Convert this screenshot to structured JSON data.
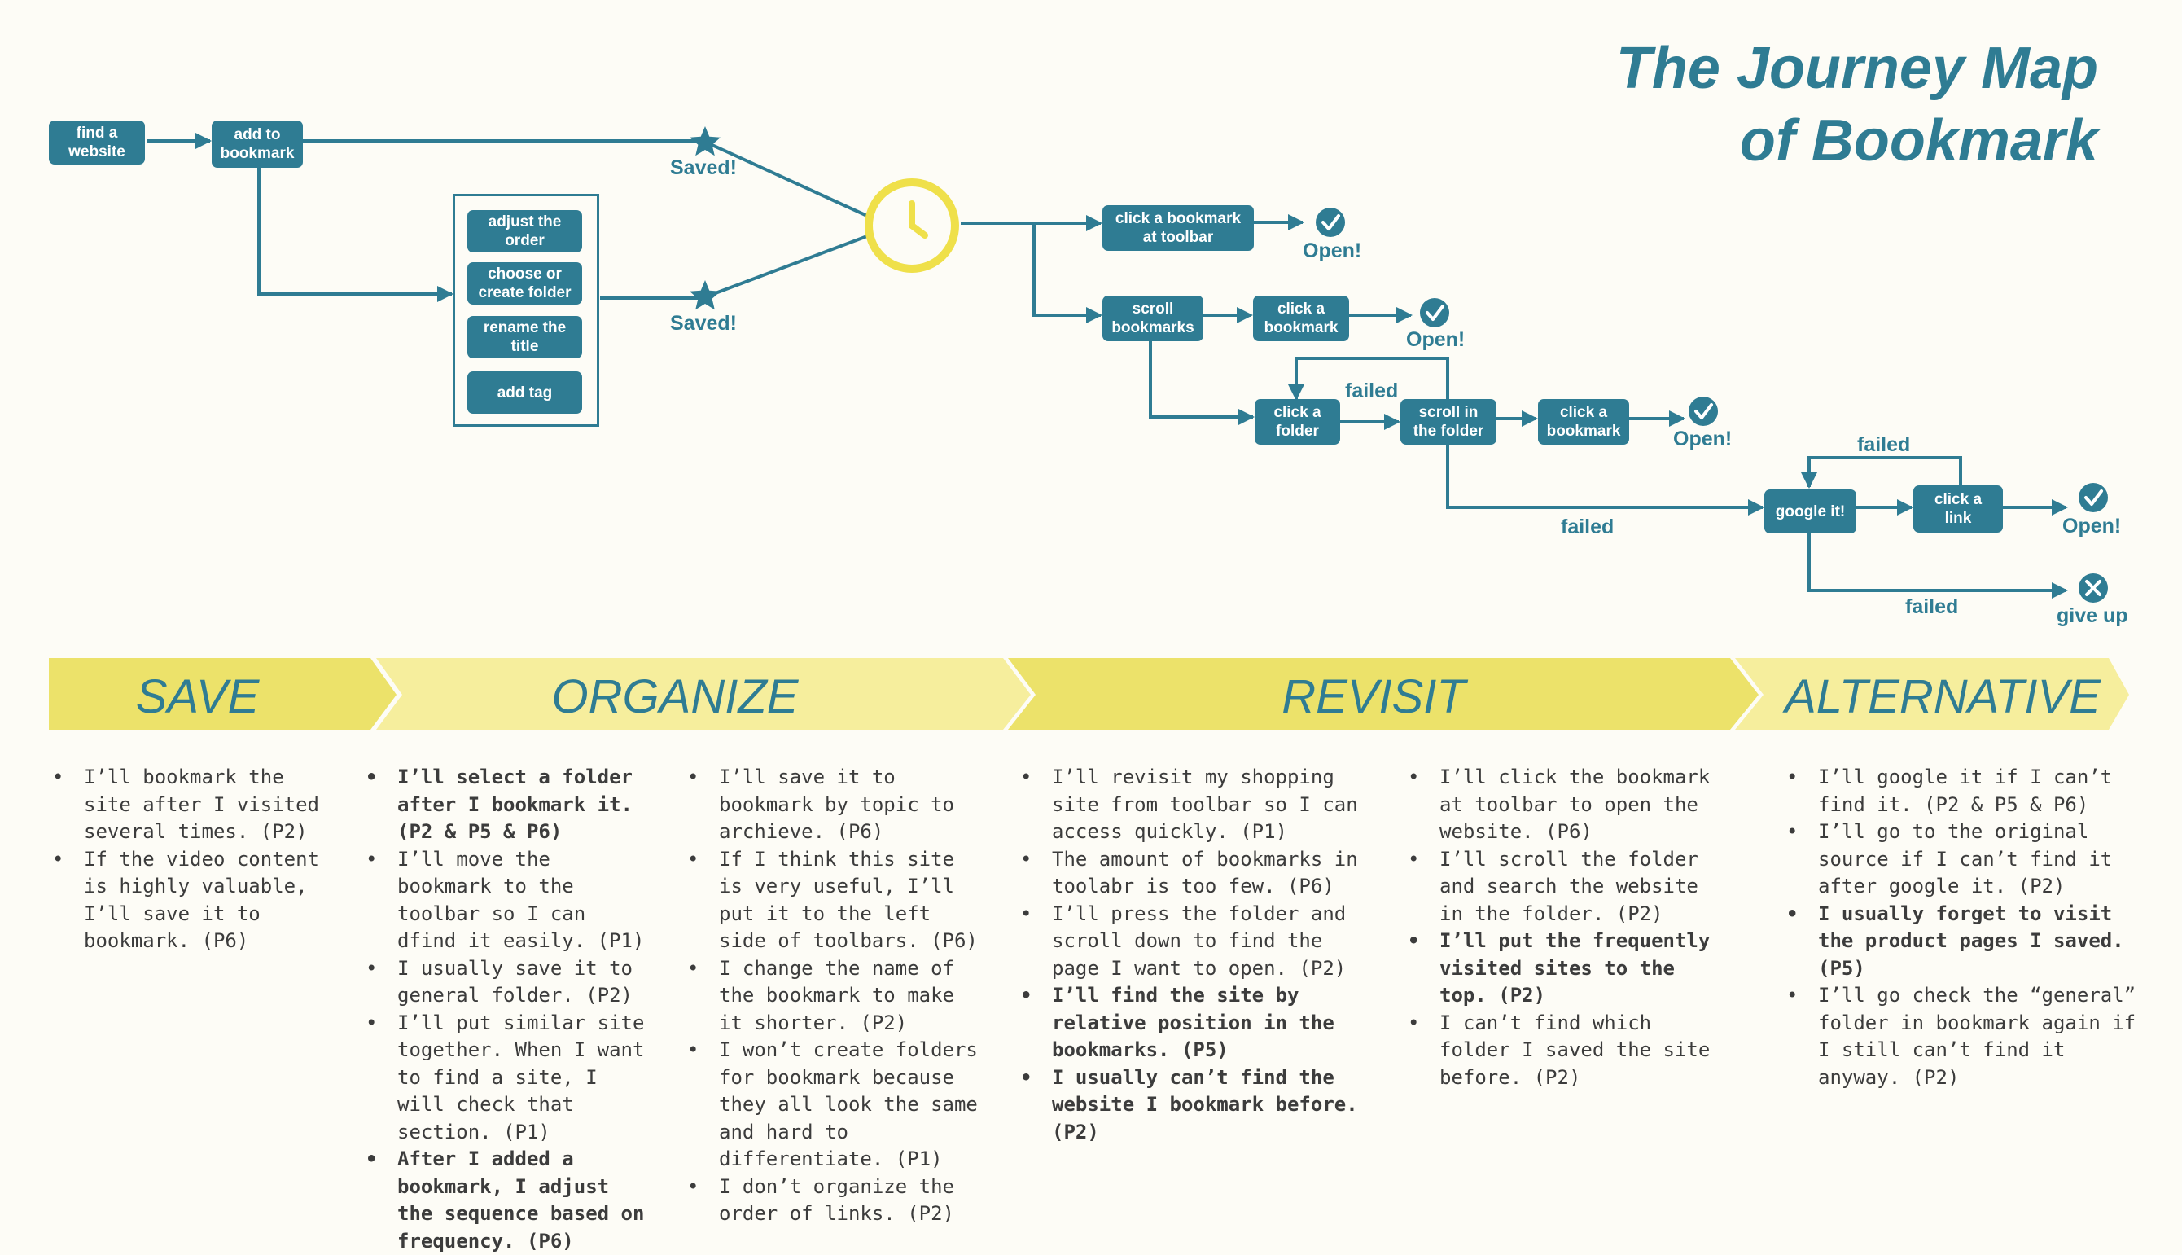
{
  "title": {
    "line1": "The Journey Map",
    "line2": "of Bookmark"
  },
  "flow": {
    "nodes": {
      "find": "find a\nwebsite",
      "add": "add to\nbookmark",
      "adjust": "adjust the\norder",
      "choose": "choose or\ncreate folder",
      "rename": "rename the\ntitle",
      "tag": "add tag",
      "toolbar": "click a bookmark\nat toolbar",
      "scroll": "scroll\nbookmarks",
      "click_bm1": "click a\nbookmark",
      "folder": "click a\nfolder",
      "scroll_in": "scroll in\nthe folder",
      "click_bm2": "click a\nbookmark",
      "google": "google it!",
      "link": "click a\nlink"
    },
    "labels": {
      "saved1": "Saved!",
      "saved2": "Saved!",
      "open1": "Open!",
      "open2": "Open!",
      "open3": "Open!",
      "open4": "Open!",
      "failed1": "failed",
      "failed2": "failed",
      "failed3": "failed",
      "failed4": "failed",
      "giveup": "give up"
    }
  },
  "phases": [
    "SAVE",
    "ORGANIZE",
    "REVISIT",
    "ALTERNATIVE"
  ],
  "notes": {
    "col1": [
      {
        "text": "I’ll bookmark the site after I visited several times. (P2)",
        "bold": false
      },
      {
        "text": "If the video content is highly valuable, I’ll save it to bookmark. (P6)",
        "bold": false
      }
    ],
    "col2": [
      {
        "text": "I’ll select a folder after I bookmark it. (P2 & P5 & P6)",
        "bold": true
      },
      {
        "text": "I’ll move the bookmark to the toolbar so I can dfind it easily. (P1)",
        "bold": false
      },
      {
        "text": "I usually save it to general folder. (P2)",
        "bold": false
      },
      {
        "text": "I’ll put similar site together. When I want to find a site, I will check that section. (P1)",
        "bold": false
      },
      {
        "text": "After I added a bookmark, I adjust the sequence based on frequency. (P6)",
        "bold": true
      }
    ],
    "col3": [
      {
        "text": "I’ll save it to bookmark by topic to archieve. (P6)",
        "bold": false
      },
      {
        "text": "If I think this site is very useful, I’ll put it to the left side of toolbars. (P6)",
        "bold": false
      },
      {
        "text": "I change the name of the bookmark to make it shorter. (P2)",
        "bold": false
      },
      {
        "text": "I won’t create folders for bookmark because they all look the same and hard to differentiate. (P1)",
        "bold": false
      },
      {
        "text": "I don’t organize the order of links. (P2)",
        "bold": false
      }
    ],
    "col4": [
      {
        "text": "I’ll revisit my shopping site from toolbar so I can access quickly. (P1)",
        "bold": false
      },
      {
        "text": "The amount of bookmarks in toolabr is too few. (P6)",
        "bold": false
      },
      {
        "text": "I’ll press the folder and scroll down to find the page I want to open. (P2)",
        "bold": false
      },
      {
        "text": "I’ll find the site by relative position in the bookmarks. (P5)",
        "bold": true
      },
      {
        "text": "I usually can’t find the website I bookmark before. (P2)",
        "bold": true
      }
    ],
    "col5": [
      {
        "text": "I’ll click the bookmark at toolbar to open the website. (P6)",
        "bold": false
      },
      {
        "text": "I’ll scroll the folder and search the website in the folder. (P2)",
        "bold": false
      },
      {
        "text": "I’ll put the frequently visited sites to the top. (P2)",
        "bold": true
      },
      {
        "text": "I can’t find which folder I saved the site before. (P2)",
        "bold": false
      }
    ],
    "col6": [
      {
        "text": "I’ll google it if I can’t find it. (P2 & P5 & P6)",
        "bold": false
      },
      {
        "text": "I’ll go to the original source if I can’t find it after google it. (P2)",
        "bold": false
      },
      {
        "text": "I usually forget to visit the product pages I saved. (P5)",
        "bold": true
      },
      {
        "text": "I’ll go check the “general” folder in bookmark again if I still can’t find it anyway. (P2)",
        "bold": false
      }
    ]
  },
  "colors": {
    "accent": "#2f7c93",
    "clock": "#efe04a",
    "phase_dark": "#ece26a",
    "phase_light": "#f6ee9d",
    "background": "#fdfcf6"
  },
  "icons": {
    "star": "star-icon",
    "check": "check-circle-icon",
    "cross": "cross-circle-icon",
    "clock": "clock-icon"
  }
}
